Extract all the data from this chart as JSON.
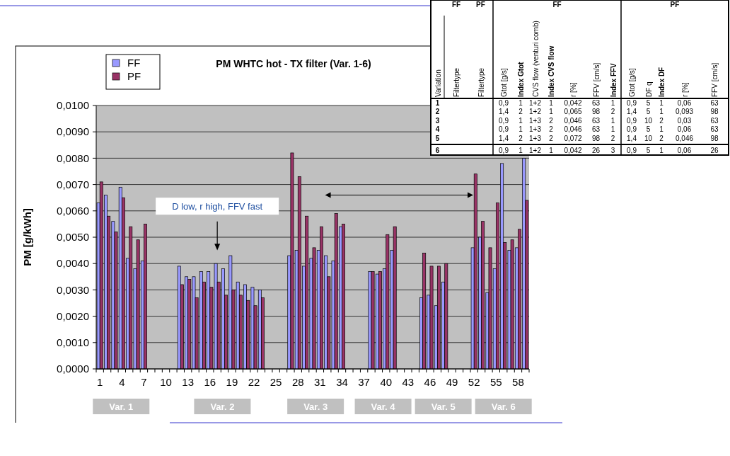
{
  "chart_data": {
    "type": "bar",
    "title": "PM WHTC hot - TX filter (Var. 1-6)",
    "ylabel": "PM [g/kWh]",
    "categories": [
      "1",
      null,
      null,
      "4",
      null,
      null,
      "7",
      null,
      null,
      "10",
      null,
      null,
      "13",
      null,
      null,
      "16",
      null,
      null,
      "19",
      null,
      null,
      "22",
      null,
      null,
      "25",
      null,
      null,
      "28",
      null,
      null,
      "31",
      null,
      null,
      "34",
      null,
      null,
      "37",
      null,
      null,
      "40",
      null,
      null,
      "43",
      null,
      null,
      "46",
      null,
      null,
      "49",
      null,
      null,
      "52",
      null,
      null,
      "55",
      null,
      null,
      "58",
      null
    ],
    "series": [
      {
        "name": "FF",
        "color": "#9999ff",
        "values": [
          0.0063,
          0.0066,
          0.0056,
          0.0069,
          0.0042,
          0.0038,
          0.0041,
          null,
          null,
          null,
          null,
          0.0039,
          0.0035,
          0.0035,
          0.0037,
          0.0037,
          0.004,
          0.0038,
          0.0043,
          0.0033,
          0.0032,
          0.0031,
          0.003,
          null,
          null,
          null,
          0.0043,
          0.0045,
          0.0039,
          0.0042,
          0.0045,
          0.0043,
          0.0041,
          0.0054,
          null,
          null,
          null,
          0.0037,
          0.0036,
          0.0038,
          0.0045,
          null,
          null,
          null,
          0.0027,
          0.0028,
          0.0024,
          0.0033,
          null,
          null,
          null,
          0.0046,
          0.005,
          0.0029,
          0.0038,
          0.0078,
          0.0045,
          0.0046,
          0.008
        ]
      },
      {
        "name": "PF",
        "color": "#993366",
        "values": [
          0.0071,
          0.0058,
          0.0052,
          0.0065,
          0.0054,
          0.0049,
          0.0055,
          null,
          null,
          null,
          null,
          0.0032,
          0.0034,
          0.0027,
          0.0033,
          0.0031,
          0.0033,
          0.0028,
          0.003,
          0.0028,
          0.0026,
          0.0024,
          0.0027,
          null,
          null,
          null,
          0.0082,
          0.0073,
          0.0058,
          0.0046,
          0.0054,
          0.0035,
          0.0059,
          0.0055,
          null,
          null,
          null,
          0.0037,
          0.0037,
          0.0051,
          0.0054,
          null,
          null,
          null,
          0.0044,
          0.0039,
          0.0039,
          0.004,
          null,
          null,
          null,
          0.0074,
          0.0056,
          0.0046,
          0.0063,
          0.0048,
          0.0049,
          0.0053,
          0.0064
        ]
      }
    ],
    "ylim": [
      0,
      0.01
    ],
    "yticks": [
      {
        "value": 0,
        "label": "0,0000"
      },
      {
        "value": 0.001,
        "label": "0,0010"
      },
      {
        "value": 0.002,
        "label": "0,0020"
      },
      {
        "value": 0.003,
        "label": "0,0030"
      },
      {
        "value": 0.004,
        "label": "0,0040"
      },
      {
        "value": 0.005,
        "label": "0,0050"
      },
      {
        "value": 0.006,
        "label": "0,0060"
      },
      {
        "value": 0.007,
        "label": "0,0070"
      },
      {
        "value": 0.008,
        "label": "0,0080"
      },
      {
        "value": 0.009,
        "label": "0,0090"
      },
      {
        "value": 0.01,
        "label": "0,0100"
      }
    ],
    "grid": "y",
    "legend": "top left",
    "annotations": [
      "D low, r high, FFV fast",
      "Var. 1",
      "Var. 2",
      "Var. 3",
      "Var. 4",
      "Var. 5",
      "Var. 6",
      "FF",
      "PF",
      "FF",
      "PF",
      "Variation",
      "Filtertype",
      "Filtertype",
      "Gtot [g/s]",
      "Index Gtot",
      "CVS flow (venturi comb)",
      "Index CVS flow",
      "r [%]",
      "FFV [cm/s]",
      "Index FFV",
      "Gtot [g/s]",
      "DF q",
      "Index DF",
      "r [%]",
      "FFV [cm/s]",
      "1",
      "0,9",
      "1",
      "1+2",
      "1",
      "0,042",
      "63",
      "1",
      "0,9",
      "5",
      "1",
      "0,06",
      "63",
      "2",
      "1,4",
      "2",
      "1+2",
      "1",
      "0,065",
      "98",
      "2",
      "1,4",
      "5",
      "1",
      "0,093",
      "98",
      "3",
      "0,9",
      "1",
      "1+3",
      "2",
      "0,046",
      "63",
      "1",
      "0,9",
      "10",
      "2",
      "0,03",
      "63",
      "4",
      "0,9",
      "1",
      "1+3",
      "2",
      "0,046",
      "63",
      "1",
      "0,9",
      "5",
      "1",
      "0,06",
      "63",
      "5",
      "1,4",
      "2",
      "1+3",
      "2",
      "0,072",
      "98",
      "2",
      "1,4",
      "10",
      "2",
      "0,046",
      "98",
      "6",
      "0,9",
      "1",
      "1+2",
      "1",
      "0,042",
      "26",
      "3",
      "0,9",
      "5",
      "1",
      "0,06",
      "26"
    ]
  }
}
